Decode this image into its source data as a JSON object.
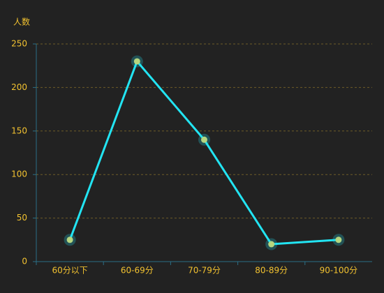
{
  "chart_data": {
    "type": "line",
    "ylabel": "人数",
    "categories": [
      "60分以下",
      "60-69分",
      "70-79分",
      "80-89分",
      "90-100分"
    ],
    "values": [
      25,
      230,
      140,
      20,
      25
    ],
    "color": "#22e4f2",
    "point_color": "#e6d25a",
    "ylim": [
      0,
      250
    ],
    "yticks": [
      0,
      50,
      100,
      150,
      200,
      250
    ],
    "grid": true
  }
}
